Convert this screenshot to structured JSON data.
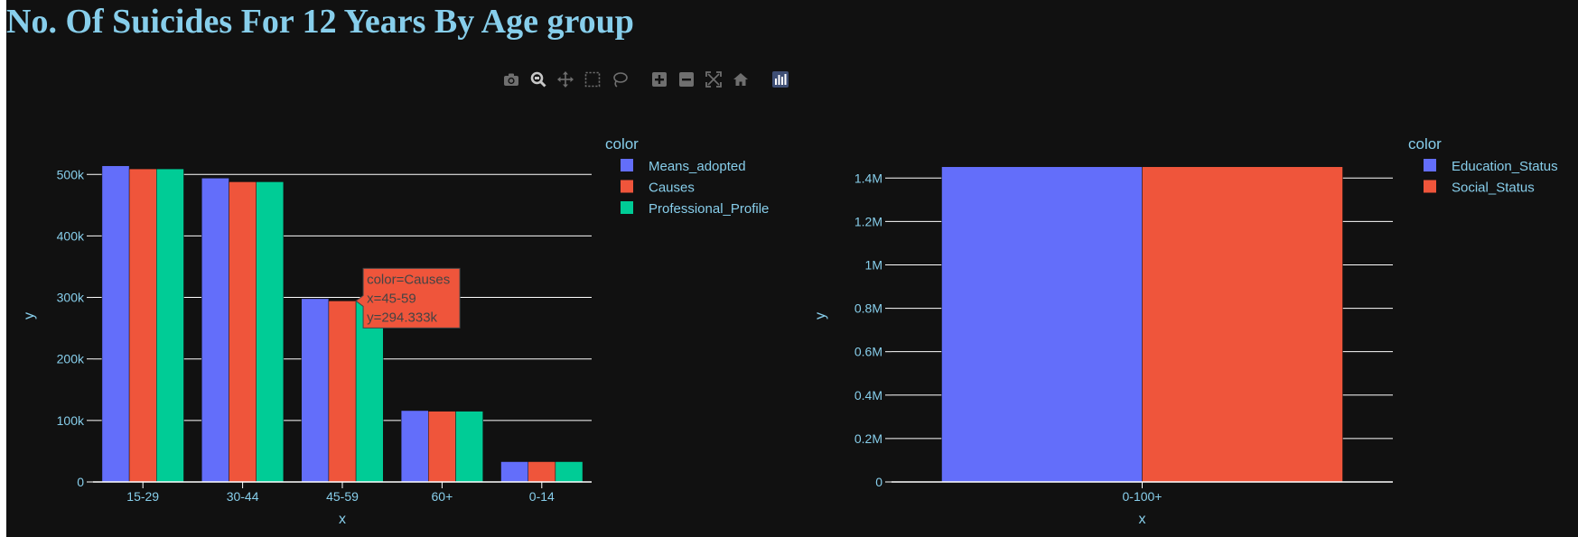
{
  "title": "No. Of Suicides For 12 Years By Age group",
  "colors": {
    "background": "#111111",
    "text": "#87CEEB",
    "grid": "#ffffff",
    "series": [
      "#636EFA",
      "#EF553B",
      "#00CC96"
    ]
  },
  "modebar": {
    "icons": [
      "camera-icon",
      "zoom-icon",
      "pan-icon",
      "box-select-icon",
      "lasso-icon",
      "zoom-in-icon",
      "zoom-out-icon",
      "autoscale-icon",
      "reset-axes-icon",
      "plotly-logo-icon"
    ]
  },
  "chart_data": [
    {
      "type": "bar",
      "barmode": "group",
      "categories": [
        "15-29",
        "30-44",
        "45-59",
        "60+",
        "0-14"
      ],
      "series": [
        {
          "name": "Means_adopted",
          "values": [
            514000,
            494000,
            298000,
            116000,
            33000
          ]
        },
        {
          "name": "Causes",
          "values": [
            509000,
            488000,
            294333,
            115000,
            33000
          ]
        },
        {
          "name": "Professional_Profile",
          "values": [
            509000,
            488000,
            294333,
            115000,
            33000
          ]
        }
      ],
      "xlabel": "x",
      "ylabel": "y",
      "ylim": [
        0,
        540000
      ],
      "yticks": [
        0,
        100000,
        200000,
        300000,
        400000,
        500000
      ],
      "ytick_labels": [
        "0",
        "100k",
        "200k",
        "300k",
        "400k",
        "500k"
      ],
      "grid": true,
      "legend_title": "color",
      "legend_position": "right",
      "hover": {
        "category": "45-59",
        "series": "Causes",
        "lines": [
          "color=Causes",
          "x=45-59",
          "y=294.333k"
        ]
      }
    },
    {
      "type": "bar",
      "barmode": "group",
      "categories": [
        "0-100+"
      ],
      "series": [
        {
          "name": "Education_Status",
          "values": [
            1452000
          ]
        },
        {
          "name": "Social_Status",
          "values": [
            1452000
          ]
        }
      ],
      "xlabel": "x",
      "ylabel": "y",
      "ylim": [
        0,
        1530000
      ],
      "yticks": [
        0,
        200000,
        400000,
        600000,
        800000,
        1000000,
        1200000,
        1400000
      ],
      "ytick_labels": [
        "0",
        "0.2M",
        "0.4M",
        "0.6M",
        "0.8M",
        "1M",
        "1.2M",
        "1.4M"
      ],
      "grid": true,
      "legend_title": "color",
      "legend_position": "right"
    }
  ]
}
